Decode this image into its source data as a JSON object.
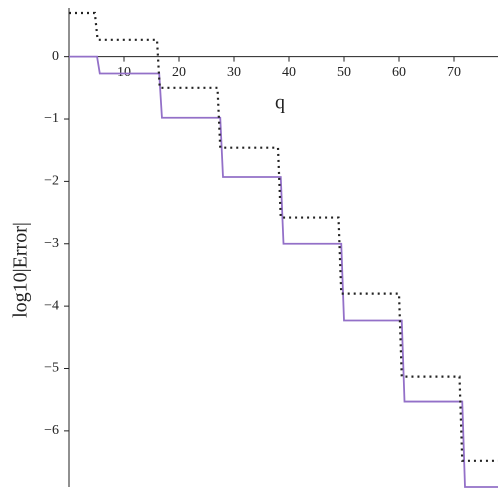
{
  "chart_data": {
    "type": "line",
    "xlabel": "q",
    "ylabel": "log10|Error|",
    "xlim": [
      0,
      78
    ],
    "ylim": [
      -6.9,
      0.78
    ],
    "xticks": [
      10,
      20,
      30,
      40,
      50,
      60,
      70
    ],
    "yticks": [
      0,
      {
        "value": -1,
        "label": "−1"
      },
      {
        "value": -2,
        "label": "−2"
      },
      {
        "value": -3,
        "label": "−3"
      },
      {
        "value": -4,
        "label": "−4"
      },
      {
        "value": -5,
        "label": "−5"
      },
      {
        "value": -6,
        "label": "−6"
      }
    ],
    "series": [
      {
        "name": "solid",
        "color": "#9370c8",
        "dash": "solid",
        "x": [
          0,
          5.1,
          5.6,
          16.4,
          16.9,
          27.5,
          28,
          38.5,
          39,
          49.5,
          50,
          60.5,
          61,
          71.5,
          72,
          78
        ],
        "values": [
          0,
          0,
          -0.27,
          -0.27,
          -0.98,
          -0.98,
          -1.93,
          -1.93,
          -3.0,
          -3.0,
          -4.23,
          -4.23,
          -5.53,
          -5.53,
          -6.9,
          -6.9
        ]
      },
      {
        "name": "dotted",
        "color": "#222222",
        "dash": "dotted",
        "x": [
          0,
          4.7,
          5.2,
          16,
          16.5,
          27,
          27.5,
          38,
          38.5,
          49,
          49.5,
          60,
          60.5,
          71,
          71.5,
          78
        ],
        "values": [
          0.7,
          0.7,
          0.27,
          0.27,
          -0.5,
          -0.5,
          -1.46,
          -1.46,
          -2.58,
          -2.58,
          -3.8,
          -3.8,
          -5.13,
          -5.13,
          -6.48,
          -6.48
        ]
      }
    ]
  }
}
